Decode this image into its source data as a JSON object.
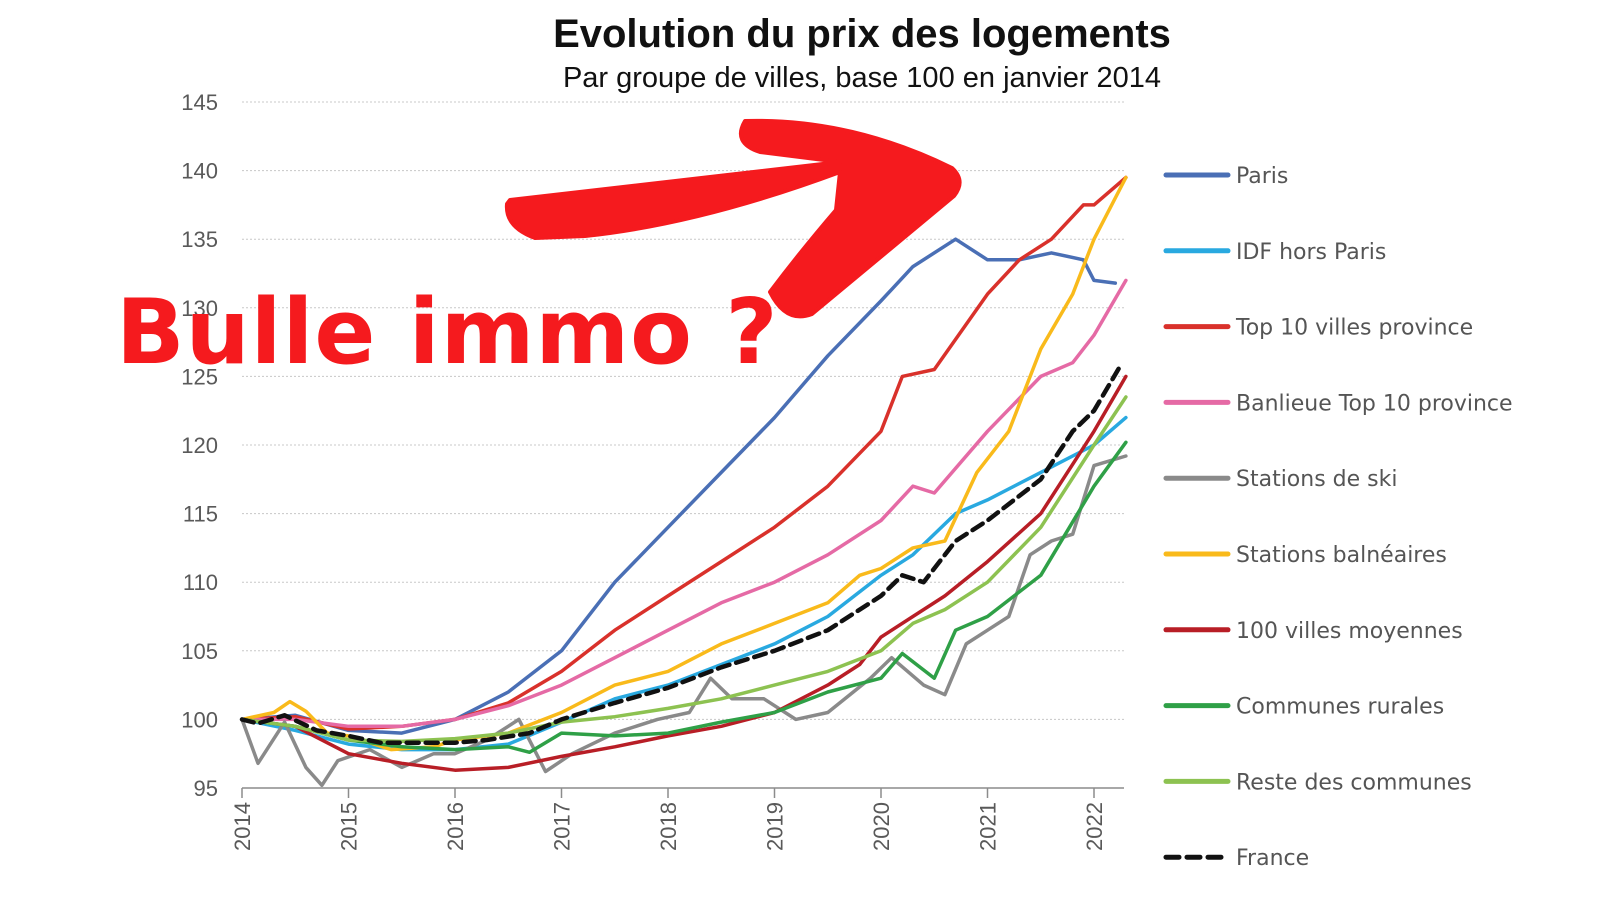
{
  "chart_data": {
    "type": "line",
    "title": "Evolution du prix des logements",
    "subtitle": "Par groupe de villes, base 100 en janvier 2014",
    "annotation": "Bulle immo ?",
    "xlabel": "",
    "ylabel": "",
    "xlim": [
      2014,
      2022.35
    ],
    "ylim": [
      95,
      145
    ],
    "yticks": [
      95,
      100,
      105,
      110,
      115,
      120,
      125,
      130,
      135,
      140,
      145
    ],
    "xticks": [
      "2014",
      "2015",
      "2016",
      "2017",
      "2018",
      "2019",
      "2020",
      "2021",
      "2022"
    ],
    "grid": "horizontal-dotted",
    "legend_position": "right",
    "series": [
      {
        "name": "Paris",
        "color": "#4a6fb5",
        "dashed": false,
        "points": [
          [
            2014,
            100
          ],
          [
            2014.5,
            100.3
          ],
          [
            2015,
            99.2
          ],
          [
            2015.5,
            99
          ],
          [
            2016,
            100
          ],
          [
            2016.5,
            102
          ],
          [
            2017,
            105
          ],
          [
            2017.5,
            110
          ],
          [
            2018,
            114
          ],
          [
            2018.5,
            118
          ],
          [
            2019,
            122
          ],
          [
            2019.5,
            126.5
          ],
          [
            2020,
            130.5
          ],
          [
            2020.3,
            133
          ],
          [
            2020.7,
            135
          ],
          [
            2021,
            133.5
          ],
          [
            2021.3,
            133.5
          ],
          [
            2021.6,
            134
          ],
          [
            2021.9,
            133.5
          ],
          [
            2022,
            132
          ],
          [
            2022.2,
            131.8
          ]
        ]
      },
      {
        "name": "IDF hors Paris",
        "color": "#29a9e0",
        "dashed": false,
        "points": [
          [
            2014,
            100
          ],
          [
            2014.5,
            99.2
          ],
          [
            2015,
            98.2
          ],
          [
            2015.5,
            97.8
          ],
          [
            2016,
            97.8
          ],
          [
            2016.5,
            98.2
          ],
          [
            2017,
            99.8
          ],
          [
            2017.5,
            101.5
          ],
          [
            2018,
            102.5
          ],
          [
            2018.5,
            104
          ],
          [
            2019,
            105.5
          ],
          [
            2019.5,
            107.5
          ],
          [
            2020,
            110.5
          ],
          [
            2020.3,
            112
          ],
          [
            2020.7,
            115
          ],
          [
            2021,
            116
          ],
          [
            2021.5,
            118
          ],
          [
            2022,
            120
          ],
          [
            2022.3,
            122
          ]
        ]
      },
      {
        "name": "Top 10 villes province",
        "color": "#d9312b",
        "dashed": false,
        "points": [
          [
            2014,
            100
          ],
          [
            2014.5,
            100.2
          ],
          [
            2015,
            99.3
          ],
          [
            2015.5,
            99.5
          ],
          [
            2016,
            100
          ],
          [
            2016.5,
            101.2
          ],
          [
            2017,
            103.5
          ],
          [
            2017.5,
            106.5
          ],
          [
            2018,
            109
          ],
          [
            2018.5,
            111.5
          ],
          [
            2019,
            114
          ],
          [
            2019.5,
            117
          ],
          [
            2020,
            121
          ],
          [
            2020.2,
            125
          ],
          [
            2020.5,
            125.5
          ],
          [
            2021,
            131
          ],
          [
            2021.3,
            133.5
          ],
          [
            2021.6,
            135
          ],
          [
            2021.9,
            137.5
          ],
          [
            2022,
            137.5
          ],
          [
            2022.3,
            139.5
          ]
        ]
      },
      {
        "name": "Banlieue Top 10 province",
        "color": "#e56aa5",
        "dashed": false,
        "points": [
          [
            2014,
            100
          ],
          [
            2014.5,
            100
          ],
          [
            2015,
            99.5
          ],
          [
            2015.5,
            99.5
          ],
          [
            2016,
            100
          ],
          [
            2016.5,
            101
          ],
          [
            2017,
            102.5
          ],
          [
            2017.5,
            104.5
          ],
          [
            2018,
            106.5
          ],
          [
            2018.5,
            108.5
          ],
          [
            2019,
            110
          ],
          [
            2019.5,
            112
          ],
          [
            2020,
            114.5
          ],
          [
            2020.3,
            117
          ],
          [
            2020.5,
            116.5
          ],
          [
            2021,
            121
          ],
          [
            2021.5,
            125
          ],
          [
            2021.8,
            126
          ],
          [
            2022,
            128
          ],
          [
            2022.3,
            132
          ]
        ]
      },
      {
        "name": "Stations de ski",
        "color": "#8a8a8a",
        "dashed": false,
        "points": [
          [
            2014,
            100
          ],
          [
            2014.15,
            96.8
          ],
          [
            2014.4,
            99.8
          ],
          [
            2014.6,
            96.5
          ],
          [
            2014.75,
            95.2
          ],
          [
            2014.9,
            97
          ],
          [
            2015.2,
            97.8
          ],
          [
            2015.5,
            96.5
          ],
          [
            2015.8,
            97.5
          ],
          [
            2016,
            97.5
          ],
          [
            2016.3,
            98.5
          ],
          [
            2016.6,
            100
          ],
          [
            2016.85,
            96.2
          ],
          [
            2017.1,
            97.5
          ],
          [
            2017.5,
            99
          ],
          [
            2017.9,
            100
          ],
          [
            2018.2,
            100.5
          ],
          [
            2018.4,
            103
          ],
          [
            2018.6,
            101.5
          ],
          [
            2018.9,
            101.5
          ],
          [
            2019.2,
            100
          ],
          [
            2019.5,
            100.5
          ],
          [
            2019.9,
            103
          ],
          [
            2020.1,
            104.5
          ],
          [
            2020.4,
            102.5
          ],
          [
            2020.6,
            101.8
          ],
          [
            2020.8,
            105.5
          ],
          [
            2021,
            106.5
          ],
          [
            2021.2,
            107.5
          ],
          [
            2021.4,
            112
          ],
          [
            2021.6,
            113
          ],
          [
            2021.8,
            113.5
          ],
          [
            2022,
            118.5
          ],
          [
            2022.3,
            119.2
          ]
        ]
      },
      {
        "name": "Stations balnéaires",
        "color": "#f9ba1b",
        "dashed": false,
        "points": [
          [
            2014,
            100
          ],
          [
            2014.3,
            100.5
          ],
          [
            2014.45,
            101.3
          ],
          [
            2014.6,
            100.6
          ],
          [
            2014.8,
            99
          ],
          [
            2015,
            98.8
          ],
          [
            2015.4,
            97.8
          ],
          [
            2015.8,
            98
          ],
          [
            2016,
            98.5
          ],
          [
            2016.5,
            99
          ],
          [
            2017,
            100.5
          ],
          [
            2017.5,
            102.5
          ],
          [
            2018,
            103.5
          ],
          [
            2018.5,
            105.5
          ],
          [
            2019,
            107
          ],
          [
            2019.5,
            108.5
          ],
          [
            2019.8,
            110.5
          ],
          [
            2020,
            111
          ],
          [
            2020.3,
            112.5
          ],
          [
            2020.6,
            113
          ],
          [
            2020.9,
            118
          ],
          [
            2021.2,
            121
          ],
          [
            2021.5,
            127
          ],
          [
            2021.8,
            131
          ],
          [
            2022,
            135
          ],
          [
            2022.3,
            139.5
          ]
        ]
      },
      {
        "name": "100 villes moyennes",
        "color": "#b81e26",
        "dashed": false,
        "points": [
          [
            2014,
            100
          ],
          [
            2014.5,
            99.5
          ],
          [
            2015,
            97.5
          ],
          [
            2015.5,
            96.8
          ],
          [
            2016,
            96.3
          ],
          [
            2016.5,
            96.5
          ],
          [
            2017,
            97.3
          ],
          [
            2017.5,
            98
          ],
          [
            2018,
            98.8
          ],
          [
            2018.5,
            99.5
          ],
          [
            2019,
            100.5
          ],
          [
            2019.5,
            102.5
          ],
          [
            2019.8,
            104
          ],
          [
            2020,
            106
          ],
          [
            2020.3,
            107.5
          ],
          [
            2020.6,
            109
          ],
          [
            2021,
            111.5
          ],
          [
            2021.5,
            115
          ],
          [
            2022,
            121
          ],
          [
            2022.3,
            125
          ]
        ]
      },
      {
        "name": "Communes rurales",
        "color": "#2fa047",
        "dashed": false,
        "points": [
          [
            2014,
            100
          ],
          [
            2014.5,
            99.5
          ],
          [
            2015,
            98.5
          ],
          [
            2015.5,
            98
          ],
          [
            2016,
            97.8
          ],
          [
            2016.5,
            98
          ],
          [
            2016.7,
            97.6
          ],
          [
            2017,
            99
          ],
          [
            2017.5,
            98.8
          ],
          [
            2018,
            99
          ],
          [
            2018.5,
            99.8
          ],
          [
            2019,
            100.5
          ],
          [
            2019.5,
            102
          ],
          [
            2020,
            103
          ],
          [
            2020.2,
            104.8
          ],
          [
            2020.5,
            103
          ],
          [
            2020.7,
            106.5
          ],
          [
            2021,
            107.5
          ],
          [
            2021.5,
            110.5
          ],
          [
            2022,
            117
          ],
          [
            2022.3,
            120.2
          ]
        ]
      },
      {
        "name": "Reste des communes",
        "color": "#8dc251",
        "dashed": false,
        "points": [
          [
            2014,
            100
          ],
          [
            2014.5,
            99.5
          ],
          [
            2015,
            98.5
          ],
          [
            2015.5,
            98.4
          ],
          [
            2016,
            98.6
          ],
          [
            2016.5,
            99
          ],
          [
            2017,
            99.8
          ],
          [
            2017.5,
            100.2
          ],
          [
            2018,
            100.8
          ],
          [
            2018.5,
            101.5
          ],
          [
            2019,
            102.5
          ],
          [
            2019.5,
            103.5
          ],
          [
            2020,
            105
          ],
          [
            2020.3,
            107
          ],
          [
            2020.6,
            108
          ],
          [
            2021,
            110
          ],
          [
            2021.5,
            114
          ],
          [
            2022,
            120
          ],
          [
            2022.3,
            123.5
          ]
        ]
      },
      {
        "name": "France",
        "color": "#111111",
        "dashed": true,
        "points": [
          [
            2014,
            100
          ],
          [
            2014.15,
            99.7
          ],
          [
            2014.4,
            100.3
          ],
          [
            2014.7,
            99.2
          ],
          [
            2015,
            98.8
          ],
          [
            2015.3,
            98.3
          ],
          [
            2015.7,
            98.3
          ],
          [
            2016,
            98.3
          ],
          [
            2016.3,
            98.5
          ],
          [
            2016.7,
            99
          ],
          [
            2017,
            100
          ],
          [
            2017.5,
            101.2
          ],
          [
            2018,
            102.3
          ],
          [
            2018.5,
            103.8
          ],
          [
            2019,
            105
          ],
          [
            2019.5,
            106.5
          ],
          [
            2019.8,
            108
          ],
          [
            2020,
            109
          ],
          [
            2020.2,
            110.5
          ],
          [
            2020.4,
            110
          ],
          [
            2020.7,
            113
          ],
          [
            2021,
            114.5
          ],
          [
            2021.5,
            117.5
          ],
          [
            2021.8,
            121
          ],
          [
            2022,
            122.5
          ],
          [
            2022.25,
            125.8
          ]
        ]
      }
    ]
  }
}
